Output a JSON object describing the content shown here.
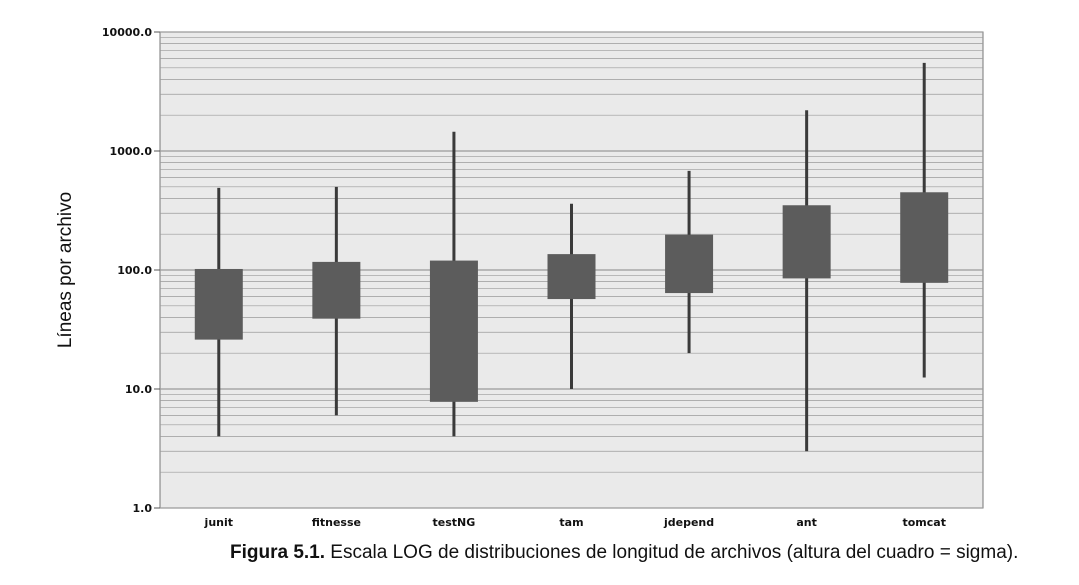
{
  "chart_data": {
    "type": "box",
    "scale": "log",
    "ylabel": "Líneas por archivo",
    "xlabel": "",
    "ylim": [
      1,
      10000
    ],
    "y_ticks": [
      "1.0",
      "10.0",
      "100.0",
      "1000.0",
      "10000.0"
    ],
    "categories": [
      "junit",
      "fitnesse",
      "testNG",
      "tam",
      "jdepend",
      "ant",
      "tomcat"
    ],
    "whisker_low": [
      4,
      6,
      4,
      10,
      20,
      3,
      12.5
    ],
    "box_low": [
      26,
      39,
      7.8,
      57,
      64,
      85,
      78
    ],
    "box_high": [
      102,
      117,
      120,
      136,
      198,
      350,
      450
    ],
    "whisker_high": [
      490,
      500,
      1450,
      360,
      680,
      2200,
      5500
    ],
    "colors": {
      "box": "#5c5c5c",
      "whisker": "#3a3a3a",
      "plot_bg": "#eaeaea",
      "grid": "#9a9a9a"
    }
  },
  "caption": {
    "label": "Figura 5.1.",
    "text": " Escala LOG de distribuciones de longitud de archivos (altura del cuadro = sigma)."
  }
}
